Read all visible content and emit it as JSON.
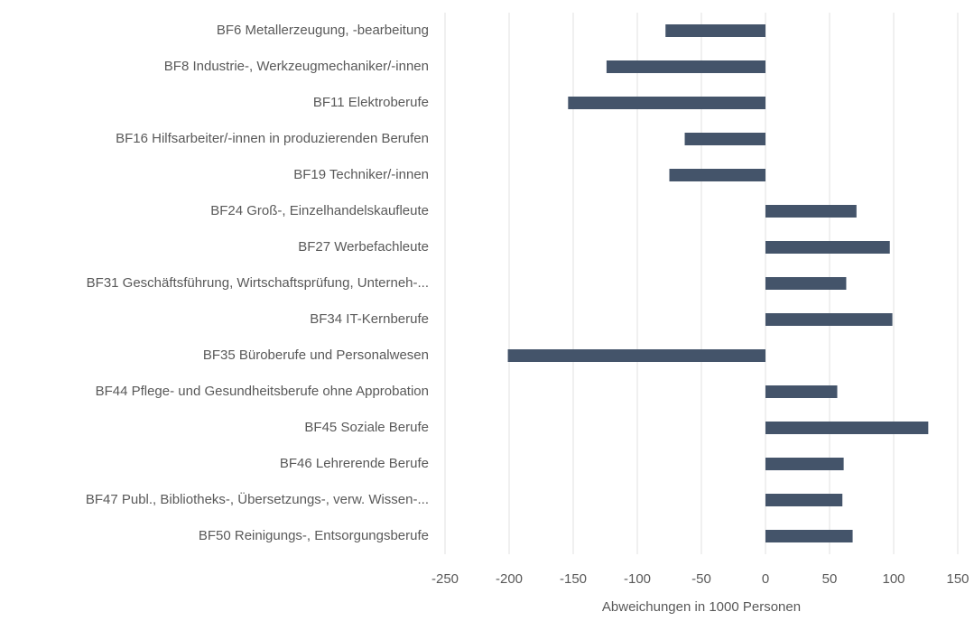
{
  "chart_data": {
    "type": "barh",
    "categories": [
      "BF6 Metallerzeugung, -bearbeitung",
      "BF8 Industrie-, Werkzeugmechaniker/-innen",
      "BF11 Elektroberufe",
      "BF16 Hilfsarbeiter/-innen in produzierenden Berufen",
      "BF19 Techniker/-innen",
      "BF24 Groß-, Einzelhandelskaufleute",
      "BF27 Werbefachleute",
      "BF31 Geschäftsführung, Wirtschaftsprüfung, Unterneh-...",
      "BF34 IT-Kernberufe",
      "BF35 Büroberufe und Personalwesen",
      "BF44 Pflege- und Gesundheitsberufe ohne Approbation",
      "BF45 Soziale Berufe",
      "BF46 Lehrerende Berufe",
      "BF47 Publ., Bibliotheks-, Übersetzungs-, verw. Wissen-...",
      "BF50 Reinigungs-, Entsorgungsberufe"
    ],
    "values": [
      -78,
      -124,
      -154,
      -63,
      -75,
      71,
      97,
      63,
      99,
      -201,
      56,
      127,
      61,
      60,
      68
    ],
    "color": "#44546a",
    "xlabel": "Abweichungen in 1000 Personen",
    "xlim": [
      -250,
      150
    ],
    "xticks": [
      -250,
      -200,
      -150,
      -100,
      -50,
      0,
      50,
      100,
      150
    ],
    "grid": true
  }
}
